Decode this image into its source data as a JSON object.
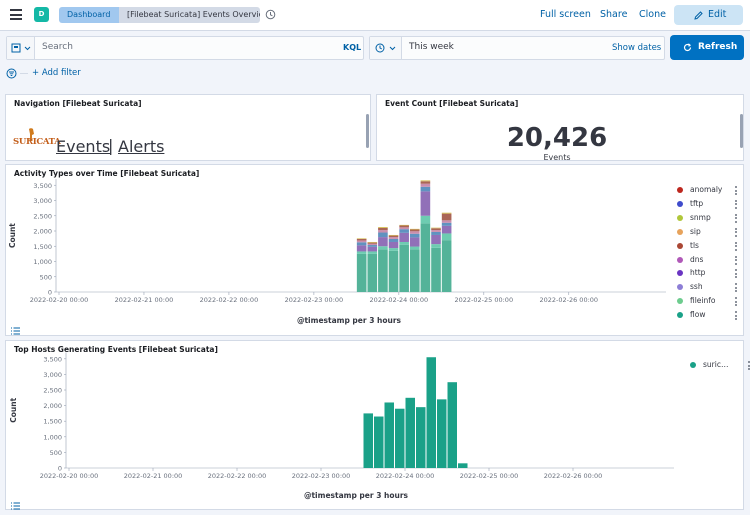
{
  "header": {
    "logo_letter": "D",
    "breadcrumb_root": "Dashboard",
    "breadcrumb_current": "[Filebeat Suricata] Events Overview",
    "full_screen": "Full screen",
    "share": "Share",
    "clone": "Clone",
    "edit": "Edit"
  },
  "query": {
    "placeholder": "Search",
    "language": "KQL",
    "time_range": "This week",
    "show_dates": "Show dates",
    "refresh": "Refresh",
    "add_filter": "+ Add filter"
  },
  "navigation_panel": {
    "title": "Navigation [Filebeat Suricata]",
    "logo_text": "SURICATA",
    "events_link": "Events",
    "separator": "|",
    "alerts_link": "Alerts"
  },
  "event_count_panel": {
    "title": "Event Count [Filebeat Suricata]",
    "value": "20,426",
    "label": "Events"
  },
  "activity_chart": {
    "title": "Activity Types over Time [Filebeat Suricata]",
    "ylabel": "Count",
    "xlabel": "@timestamp per 3 hours",
    "y_ticks": [
      "3,500",
      "3,000",
      "2,500",
      "2,000",
      "1,500",
      "1,000",
      "500",
      "0"
    ],
    "x_ticks": [
      "2022-02-20 00:00",
      "2022-02-21 00:00",
      "2022-02-22 00:00",
      "2022-02-23 00:00",
      "2022-02-24 00:00",
      "2022-02-25 00:00",
      "2022-02-26 00:00"
    ]
  },
  "hosts_chart": {
    "title": "Top Hosts Generating Events [Filebeat Suricata]",
    "ylabel": "Count",
    "xlabel": "@timestamp per 3 hours",
    "y_ticks": [
      "3,500",
      "3,000",
      "2,500",
      "2,000",
      "1,500",
      "1,000",
      "500",
      "0"
    ],
    "x_ticks": [
      "2022-02-20 00:00",
      "2022-02-21 00:00",
      "2022-02-22 00:00",
      "2022-02-23 00:00",
      "2022-02-24 00:00",
      "2022-02-25 00:00",
      "2022-02-26 00:00"
    ]
  },
  "chart_data": [
    {
      "type": "bar",
      "stacked": true,
      "title": "Activity Types over Time [Filebeat Suricata]",
      "xlabel": "@timestamp per 3 hours",
      "ylabel": "Count",
      "ylim": [
        0,
        3700
      ],
      "x": [
        "2022-02-23 12:00",
        "2022-02-23 15:00",
        "2022-02-23 18:00",
        "2022-02-23 21:00",
        "2022-02-24 00:00",
        "2022-02-24 03:00",
        "2022-02-24 06:00",
        "2022-02-24 09:00",
        "2022-02-24 12:00"
      ],
      "series": [
        {
          "name": "flow",
          "color": "#54b399",
          "values": [
            1250,
            1250,
            1400,
            1350,
            1550,
            1400,
            2250,
            1450,
            1700
          ]
        },
        {
          "name": "fileinfo",
          "color": "#6dccb1",
          "values": [
            80,
            80,
            100,
            90,
            90,
            90,
            250,
            120,
            220
          ]
        },
        {
          "name": "ssh",
          "color": "#9170b8",
          "values": [
            200,
            150,
            300,
            200,
            300,
            300,
            800,
            300,
            250
          ]
        },
        {
          "name": "http",
          "color": "#6092c0",
          "values": [
            100,
            60,
            150,
            100,
            120,
            120,
            150,
            100,
            100
          ]
        },
        {
          "name": "dns",
          "color": "#ca8eae",
          "values": [
            60,
            40,
            80,
            60,
            60,
            80,
            100,
            60,
            80
          ]
        },
        {
          "name": "tls",
          "color": "#aa6556",
          "values": [
            50,
            40,
            70,
            50,
            60,
            60,
            80,
            60,
            220
          ]
        },
        {
          "name": "sip",
          "color": "#e7664c",
          "values": [
            0,
            0,
            0,
            0,
            0,
            0,
            0,
            0,
            0
          ]
        },
        {
          "name": "snmp",
          "color": "#b9a888",
          "values": [
            0,
            0,
            0,
            0,
            0,
            0,
            0,
            0,
            0
          ]
        },
        {
          "name": "tftp",
          "color": "#d36086",
          "values": [
            0,
            0,
            0,
            0,
            0,
            0,
            0,
            0,
            0
          ]
        },
        {
          "name": "anomaly",
          "color": "#d6bf57",
          "values": [
            20,
            20,
            30,
            20,
            20,
            20,
            30,
            20,
            30
          ]
        }
      ],
      "legend": [
        {
          "name": "anomaly",
          "color": "#bd271e"
        },
        {
          "name": "tftp",
          "color": "#3f4bcc"
        },
        {
          "name": "snmp",
          "color": "#b0c73a"
        },
        {
          "name": "sip",
          "color": "#e7a35c"
        },
        {
          "name": "tls",
          "color": "#aa4735"
        },
        {
          "name": "dns",
          "color": "#b059b8"
        },
        {
          "name": "http",
          "color": "#6a35c2"
        },
        {
          "name": "ssh",
          "color": "#8d7ed6"
        },
        {
          "name": "fileinfo",
          "color": "#6dcc8e"
        },
        {
          "name": "flow",
          "color": "#1aa188"
        }
      ],
      "legend_position": "right"
    },
    {
      "type": "bar",
      "title": "Top Hosts Generating Events [Filebeat Suricata]",
      "xlabel": "@timestamp per 3 hours",
      "ylabel": "Count",
      "ylim": [
        0,
        3700
      ],
      "x": [
        "2022-02-23 12:00",
        "2022-02-23 15:00",
        "2022-02-23 18:00",
        "2022-02-23 21:00",
        "2022-02-24 00:00",
        "2022-02-24 03:00",
        "2022-02-24 06:00",
        "2022-02-24 09:00",
        "2022-02-24 12:00",
        "2022-02-24 15:00"
      ],
      "series": [
        {
          "name": "suric…",
          "color": "#1aa188",
          "values": [
            1750,
            1650,
            2100,
            1900,
            2250,
            1950,
            3550,
            2200,
            2750,
            150
          ]
        }
      ],
      "legend_position": "right"
    }
  ]
}
